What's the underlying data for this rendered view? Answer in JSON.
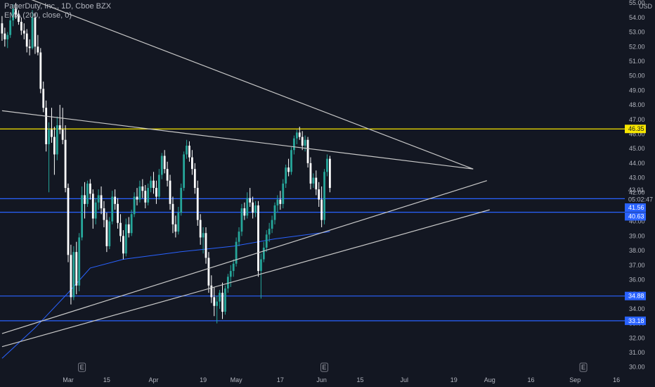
{
  "chart_data": {
    "type": "candlestick",
    "title": "PagerDuty, Inc., 1D, Cboe BZX",
    "indicator": "EMA (200, close, 0)",
    "currency": "USD",
    "ylim": [
      29.6,
      55.2
    ],
    "y_ticks": [
      30,
      31,
      32,
      33,
      34,
      35,
      36,
      37,
      38,
      39,
      40,
      41,
      42,
      43,
      44,
      45,
      46,
      47,
      48,
      49,
      50,
      51,
      52,
      53,
      54,
      55
    ],
    "x_ticks": [
      {
        "label": "Mar",
        "day": 0
      },
      {
        "label": "15",
        "day": 14
      },
      {
        "label": "Apr",
        "day": 31
      },
      {
        "label": "19",
        "day": 49
      },
      {
        "label": "May",
        "day": 61
      },
      {
        "label": "17",
        "day": 77
      },
      {
        "label": "Jun",
        "day": 92
      },
      {
        "label": "15",
        "day": 106
      },
      {
        "label": "Jul",
        "day": 122
      },
      {
        "label": "19",
        "day": 140
      },
      {
        "label": "Aug",
        "day": 153
      },
      {
        "label": "16",
        "day": 168
      },
      {
        "label": "Sep",
        "day": 184
      },
      {
        "label": "16",
        "day": 199
      }
    ],
    "candles": [
      [
        -24,
        53.6,
        54.1,
        52.4,
        52.9
      ],
      [
        -23,
        52.9,
        53.3,
        52.0,
        52.5
      ],
      [
        -22,
        52.5,
        53.0,
        51.9,
        52.8
      ],
      [
        -21,
        52.8,
        54.0,
        52.6,
        53.8
      ],
      [
        -20,
        53.8,
        54.9,
        53.4,
        54.6
      ],
      [
        -19,
        54.6,
        55.0,
        53.9,
        54.2
      ],
      [
        -18,
        54.2,
        54.5,
        53.5,
        53.7
      ],
      [
        -17,
        53.7,
        54.0,
        52.8,
        53.1
      ],
      [
        -16,
        53.1,
        53.6,
        52.5,
        52.9
      ],
      [
        -15,
        52.9,
        53.2,
        51.6,
        52.0
      ],
      [
        -14,
        52.0,
        52.5,
        51.4,
        51.9
      ],
      [
        -13,
        51.9,
        54.5,
        51.8,
        54.0
      ],
      [
        -12,
        54.0,
        54.3,
        51.5,
        52.0
      ],
      [
        -11,
        52.0,
        52.8,
        51.4,
        51.6
      ],
      [
        -10,
        51.6,
        51.9,
        48.8,
        49.1
      ],
      [
        -9,
        49.1,
        49.6,
        47.5,
        47.8
      ],
      [
        -8,
        47.8,
        48.3,
        44.8,
        45.3
      ],
      [
        -7,
        45.3,
        46.8,
        42.0,
        46.3
      ],
      [
        -6,
        46.3,
        47.8,
        45.4,
        45.8
      ],
      [
        -5,
        45.8,
        46.5,
        43.2,
        44.6
      ],
      [
        -4,
        44.6,
        47.2,
        44.2,
        46.6
      ],
      [
        -3,
        46.6,
        48.0,
        46.0,
        46.3
      ],
      [
        -2,
        46.3,
        47.8,
        45.3,
        45.6
      ],
      [
        -1,
        45.6,
        46.6,
        42.0,
        42.3
      ],
      [
        0,
        42.3,
        42.6,
        37.2,
        37.7
      ],
      [
        1,
        37.7,
        38.4,
        34.3,
        34.8
      ],
      [
        2,
        34.8,
        38.3,
        34.6,
        37.9
      ],
      [
        3,
        37.9,
        38.6,
        35.0,
        35.6
      ],
      [
        4,
        35.6,
        39.2,
        35.2,
        38.9
      ],
      [
        5,
        38.9,
        42.4,
        38.7,
        41.8
      ],
      [
        6,
        41.8,
        42.7,
        40.2,
        41.2
      ],
      [
        7,
        41.2,
        42.8,
        41.0,
        42.6
      ],
      [
        8,
        42.6,
        42.9,
        41.5,
        41.9
      ],
      [
        9,
        41.9,
        42.2,
        39.5,
        40.2
      ],
      [
        10,
        40.2,
        41.6,
        39.8,
        41.3
      ],
      [
        11,
        41.3,
        42.2,
        40.8,
        41.8
      ],
      [
        12,
        41.8,
        42.4,
        40.5,
        40.9
      ],
      [
        13,
        40.9,
        41.4,
        39.6,
        40.1
      ],
      [
        14,
        40.1,
        40.6,
        37.9,
        38.3
      ],
      [
        15,
        38.3,
        40.3,
        38.1,
        40.0
      ],
      [
        16,
        40.0,
        42.1,
        39.8,
        41.7
      ],
      [
        17,
        41.7,
        42.2,
        40.8,
        41.2
      ],
      [
        18,
        41.2,
        41.6,
        39.5,
        39.9
      ],
      [
        19,
        39.9,
        40.5,
        38.6,
        39.0
      ],
      [
        20,
        39.0,
        39.4,
        37.4,
        37.8
      ],
      [
        21,
        37.8,
        40.2,
        37.6,
        39.8
      ],
      [
        22,
        39.8,
        40.3,
        38.9,
        39.2
      ],
      [
        23,
        39.2,
        40.8,
        39.0,
        40.5
      ],
      [
        24,
        40.5,
        42.0,
        40.3,
        41.7
      ],
      [
        25,
        41.7,
        42.3,
        41.1,
        41.5
      ],
      [
        26,
        41.5,
        42.8,
        41.3,
        42.4
      ],
      [
        27,
        42.4,
        42.9,
        41.6,
        42.1
      ],
      [
        28,
        42.1,
        42.5,
        40.9,
        41.3
      ],
      [
        29,
        41.3,
        42.6,
        41.1,
        42.3
      ],
      [
        30,
        42.3,
        43.1,
        42.0,
        42.8
      ],
      [
        31,
        42.8,
        43.4,
        41.9,
        42.3
      ],
      [
        32,
        42.3,
        42.8,
        41.2,
        41.7
      ],
      [
        33,
        41.7,
        43.6,
        41.5,
        43.2
      ],
      [
        34,
        43.2,
        44.7,
        42.9,
        44.5
      ],
      [
        35,
        44.5,
        44.9,
        43.3,
        43.6
      ],
      [
        36,
        43.6,
        44.1,
        42.4,
        42.8
      ],
      [
        37,
        42.8,
        43.2,
        40.8,
        41.2
      ],
      [
        38,
        41.2,
        41.7,
        39.2,
        39.8
      ],
      [
        39,
        39.8,
        40.4,
        38.9,
        39.3
      ],
      [
        40,
        39.3,
        41.0,
        39.1,
        40.6
      ],
      [
        41,
        40.6,
        42.6,
        40.4,
        42.3
      ],
      [
        42,
        42.3,
        44.8,
        42.1,
        44.6
      ],
      [
        43,
        44.6,
        45.6,
        44.3,
        45.2
      ],
      [
        44,
        45.2,
        45.5,
        44.1,
        44.4
      ],
      [
        45,
        44.4,
        44.9,
        43.2,
        43.6
      ],
      [
        46,
        43.6,
        44.0,
        41.9,
        42.3
      ],
      [
        47,
        42.3,
        42.8,
        39.7,
        40.1
      ],
      [
        48,
        40.1,
        40.5,
        38.4,
        38.9
      ],
      [
        49,
        38.9,
        39.6,
        37.8,
        39.2
      ],
      [
        50,
        39.2,
        39.6,
        37.1,
        37.5
      ],
      [
        51,
        37.5,
        37.9,
        35.1,
        35.6
      ],
      [
        52,
        35.6,
        36.3,
        34.4,
        34.8
      ],
      [
        53,
        34.8,
        35.5,
        33.5,
        34.2
      ],
      [
        54,
        34.2,
        34.9,
        33.0,
        34.5
      ],
      [
        55,
        34.5,
        35.3,
        34.0,
        35.1
      ],
      [
        56,
        35.1,
        35.8,
        33.3,
        33.8
      ],
      [
        57,
        33.8,
        35.6,
        33.6,
        35.4
      ],
      [
        58,
        35.4,
        36.4,
        35.1,
        36.2
      ],
      [
        59,
        36.2,
        37.0,
        35.5,
        36.6
      ],
      [
        60,
        36.6,
        37.4,
        36.2,
        37.1
      ],
      [
        61,
        37.1,
        38.9,
        36.9,
        38.6
      ],
      [
        62,
        38.6,
        39.6,
        38.3,
        39.3
      ],
      [
        63,
        39.3,
        41.2,
        39.0,
        40.9
      ],
      [
        64,
        40.9,
        41.3,
        40.1,
        40.4
      ],
      [
        65,
        40.4,
        42.0,
        40.2,
        41.6
      ],
      [
        66,
        41.6,
        42.3,
        41.0,
        41.3
      ],
      [
        67,
        41.3,
        41.7,
        40.2,
        40.6
      ],
      [
        68,
        40.6,
        41.4,
        40.3,
        41.1
      ],
      [
        69,
        41.1,
        41.4,
        36.2,
        36.6
      ],
      [
        70,
        36.6,
        37.8,
        34.7,
        37.4
      ],
      [
        71,
        37.4,
        38.6,
        37.2,
        38.2
      ],
      [
        72,
        38.2,
        39.4,
        37.9,
        39.1
      ],
      [
        73,
        39.1,
        39.9,
        38.6,
        39.5
      ],
      [
        74,
        39.5,
        40.4,
        39.2,
        40.1
      ],
      [
        75,
        40.1,
        41.3,
        39.8,
        41.1
      ],
      [
        76,
        41.1,
        41.8,
        40.6,
        41.5
      ],
      [
        77,
        41.5,
        42.1,
        40.8,
        41.2
      ],
      [
        78,
        41.2,
        42.9,
        40.9,
        42.6
      ],
      [
        79,
        42.6,
        43.9,
        42.3,
        43.7
      ],
      [
        80,
        43.7,
        44.3,
        43.1,
        43.4
      ],
      [
        81,
        43.4,
        45.1,
        43.2,
        44.9
      ],
      [
        82,
        44.9,
        45.9,
        44.6,
        45.7
      ],
      [
        83,
        45.7,
        46.3,
        45.3,
        46.1
      ],
      [
        84,
        46.1,
        46.5,
        45.6,
        45.8
      ],
      [
        85,
        45.8,
        46.2,
        44.9,
        45.2
      ],
      [
        86,
        45.2,
        45.9,
        44.8,
        45.6
      ],
      [
        87,
        45.6,
        45.8,
        43.7,
        44.0
      ],
      [
        88,
        44.0,
        44.4,
        42.2,
        42.6
      ],
      [
        89,
        42.6,
        43.3,
        42.3,
        43.0
      ],
      [
        90,
        43.0,
        43.5,
        41.8,
        42.2
      ],
      [
        91,
        42.2,
        42.7,
        41.0,
        41.5
      ],
      [
        92,
        41.5,
        42.4,
        39.6,
        40.1
      ],
      [
        93,
        40.1,
        43.6,
        39.8,
        43.4
      ],
      [
        94,
        43.4,
        44.6,
        43.1,
        44.3
      ],
      [
        95,
        44.3,
        44.5,
        42.0,
        42.3
      ]
    ],
    "ema": [
      [
        -24,
        30.6
      ],
      [
        -12,
        32.7
      ],
      [
        0,
        35.1
      ],
      [
        8,
        36.8
      ],
      [
        20,
        37.4
      ],
      [
        40,
        37.9
      ],
      [
        60,
        38.3
      ],
      [
        75,
        38.8
      ],
      [
        95,
        39.3
      ]
    ],
    "horizontal_levels": [
      {
        "price": 46.35,
        "color": "#f7e600"
      },
      {
        "price": 41.56,
        "color": "#2962ff"
      },
      {
        "price": 40.63,
        "color": "#2962ff"
      },
      {
        "price": 34.88,
        "color": "#2962ff"
      },
      {
        "price": 33.18,
        "color": "#2962ff"
      }
    ],
    "trend_lines": [
      [
        -24,
        56.0,
        147,
        43.6
      ],
      [
        -24,
        47.6,
        147,
        43.6
      ],
      [
        -24,
        32.3,
        152,
        42.8
      ],
      [
        -24,
        31.4,
        153,
        40.8
      ]
    ],
    "price_tags": [
      {
        "text": "46.35",
        "price": 46.35,
        "bg": "#f7e600",
        "fg": "#131722",
        "box": true
      },
      {
        "text": "42.01",
        "price": 42.15,
        "bg": "#131722",
        "fg": "#b2b5be",
        "box": false
      },
      {
        "text": "05:02:47",
        "price": 41.5,
        "bg": "#131722",
        "fg": "#b2b5be",
        "box": false
      },
      {
        "text": "41.56",
        "price": 40.95,
        "bg": "#2962ff",
        "fg": "#ffffff",
        "box": true
      },
      {
        "text": "40.63",
        "price": 40.35,
        "bg": "#2962ff",
        "fg": "#ffffff",
        "box": true
      },
      {
        "text": "34.88",
        "price": 34.88,
        "bg": "#2962ff",
        "fg": "#ffffff",
        "box": true
      },
      {
        "text": "33.18",
        "price": 33.18,
        "bg": "#2962ff",
        "fg": "#ffffff",
        "box": true
      }
    ],
    "event_markers": [
      {
        "label": "E",
        "day": 5
      },
      {
        "label": "E",
        "day": 93
      },
      {
        "label": "E",
        "day": 187
      }
    ],
    "colors": {
      "background": "#131722",
      "up": "#26a69a",
      "down": "#ffffff",
      "ema": "#2962ff",
      "trend_line": "#c9c9c9",
      "axis_text": "#b2b5be"
    }
  }
}
